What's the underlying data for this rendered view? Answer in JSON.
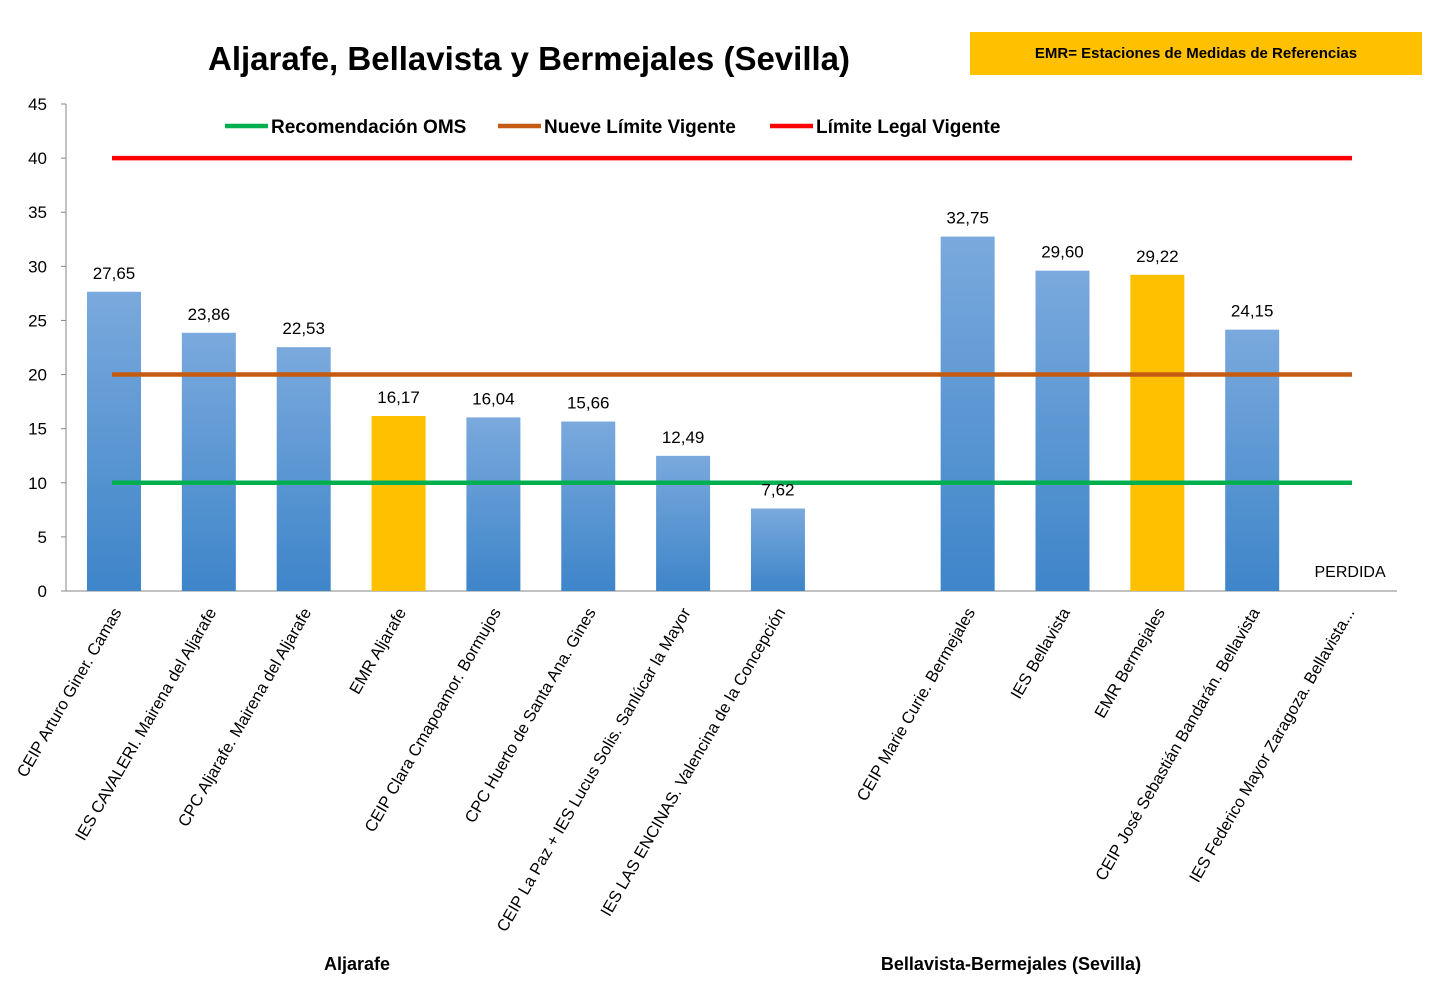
{
  "chart_data": {
    "type": "bar",
    "title": "Aljarafe, Bellavista y Bermejales (Sevilla)",
    "note_box": "EMR= Estaciones de Medidas de Referencias",
    "ylim": [
      0,
      45
    ],
    "yticks": [
      0,
      5,
      10,
      15,
      20,
      25,
      30,
      35,
      40,
      45
    ],
    "xlabel": "",
    "ylabel": "",
    "groups": [
      {
        "name": "Aljarafe",
        "bars": [
          {
            "category": "CEIP Arturo Giner. Camas",
            "value": 27.65,
            "label": "27,65",
            "emr": false
          },
          {
            "category": "IES CAVALERI. Mairena del Aljarafe",
            "value": 23.86,
            "label": "23,86",
            "emr": false
          },
          {
            "category": "CPC Aljarafe. Mairena del Aljarafe",
            "value": 22.53,
            "label": "22,53",
            "emr": false
          },
          {
            "category": "EMR Aljarafe",
            "value": 16.17,
            "label": "16,17",
            "emr": true
          },
          {
            "category": "CEIP Clara Cmapoamor. Bormujos",
            "value": 16.04,
            "label": "16,04",
            "emr": false
          },
          {
            "category": "CPC Huerto de Santa Ana. Gines",
            "value": 15.66,
            "label": "15,66",
            "emr": false
          },
          {
            "category": "CEIP La Paz + IES Lucus Solis. Sanlúcar la Mayor",
            "value": 12.49,
            "label": "12,49",
            "emr": false
          },
          {
            "category": "IES LAS ENCINAS. Valencina de la Concepción",
            "value": 7.62,
            "label": "7,62",
            "emr": false
          }
        ]
      },
      {
        "name": "Bellavista-Bermejales (Sevilla)",
        "bars": [
          {
            "category": "CEIP Marie Curie. Bermejales",
            "value": 32.75,
            "label": "32,75",
            "emr": false
          },
          {
            "category": "IES Bellavista",
            "value": 29.6,
            "label": "29,60",
            "emr": false
          },
          {
            "category": "EMR Bermejales",
            "value": 29.22,
            "label": "29,22",
            "emr": true
          },
          {
            "category": "CEIP José Sebastián Bandarán. Bellavista",
            "value": 24.15,
            "label": "24,15",
            "emr": false
          },
          {
            "category": "IES Federico Mayor Zaragoza. Bellavista...",
            "value": null,
            "label": "PERDIDA",
            "emr": false
          }
        ]
      }
    ],
    "reference_lines": [
      {
        "name": "Recomendación OMS",
        "value": 10,
        "color": "#00B050"
      },
      {
        "name": "Nueve Límite Vigente",
        "value": 20,
        "color": "#C55A11"
      },
      {
        "name": "Límite Legal Vigente",
        "value": 40,
        "color": "#FF0000"
      }
    ],
    "colors": {
      "bar_top": "#7AA9DD",
      "bar_bottom": "#3E85C9",
      "emr": "#FFC000",
      "axis": "#868686"
    },
    "legend_position": "top"
  }
}
